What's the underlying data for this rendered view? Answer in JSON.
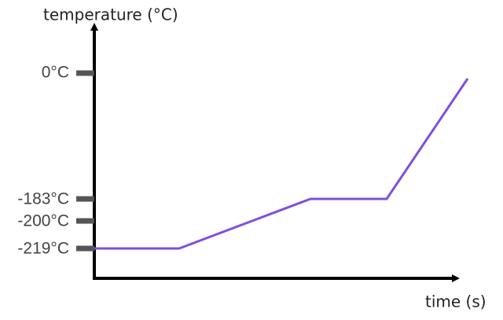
{
  "y_axis_label": "temperature (°C)",
  "x_axis_label": "time (s)",
  "y_ticks": [
    "0°C",
    "-183°C",
    "-200°C",
    "-219°C"
  ]
}
